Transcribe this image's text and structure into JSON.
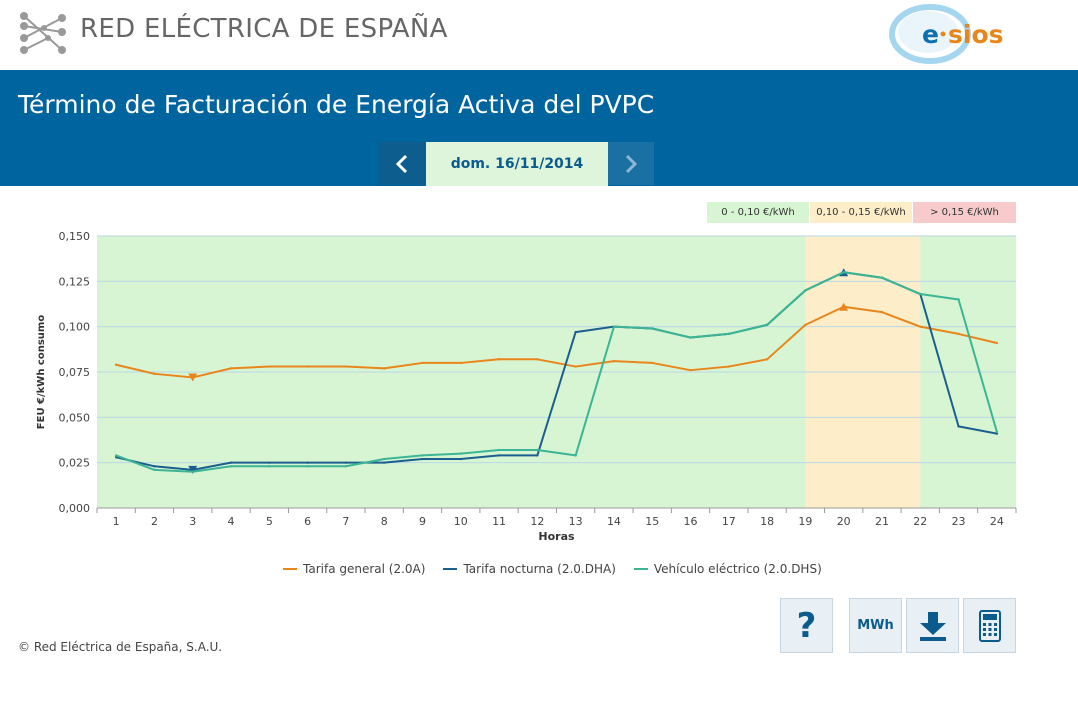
{
  "brand": {
    "company_name": "RED ELÉCTRICA DE ESPAÑA",
    "app_logo_text_prefix": "e",
    "app_logo_text_suffix": "sios"
  },
  "header": {
    "title": "Término de Facturación de Energía Activa del PVPC",
    "date": "dom. 16/11/2014"
  },
  "price_bands": [
    {
      "label": "0 - 0,10 €/kWh",
      "color": "#d8f5d3"
    },
    {
      "label": "0,10 - 0,15 €/kWh",
      "color": "#fdeec9"
    },
    {
      "label": "> 0,15 €/kWh",
      "color": "#f7cbcb"
    }
  ],
  "chart_data": {
    "type": "line",
    "title": "",
    "xlabel": "Horas",
    "ylabel": "FEU €/kWh consumo",
    "ylim": [
      0,
      0.15
    ],
    "y_ticks": [
      "0,000",
      "0,025",
      "0,050",
      "0,075",
      "0,100",
      "0,125",
      "0,150"
    ],
    "y_tick_values": [
      0,
      0.025,
      0.05,
      0.075,
      0.1,
      0.125,
      0.15
    ],
    "x": [
      "1",
      "2",
      "3",
      "4",
      "5",
      "6",
      "7",
      "8",
      "9",
      "10",
      "11",
      "12",
      "13",
      "14",
      "15",
      "16",
      "17",
      "18",
      "19",
      "20",
      "21",
      "22",
      "23",
      "24"
    ],
    "grid": true,
    "legend": "bottom",
    "background_bands": [
      {
        "from_hour": 18.5,
        "to_hour": 21.5,
        "color": "#fdeec9"
      }
    ],
    "series": [
      {
        "name": "Tarifa general (2.0A)",
        "color": "#e8861b",
        "values": [
          0.079,
          0.074,
          0.072,
          0.077,
          0.078,
          0.078,
          0.078,
          0.077,
          0.08,
          0.08,
          0.082,
          0.082,
          0.078,
          0.081,
          0.08,
          0.076,
          0.078,
          0.082,
          0.101,
          0.111,
          0.108,
          0.1,
          0.096,
          0.091
        ],
        "min_marker_hour": 3,
        "max_marker_hour": 20
      },
      {
        "name": "Tarifa nocturna (2.0.DHA)",
        "color": "#1b5f8e",
        "values": [
          0.028,
          0.023,
          0.021,
          0.025,
          0.025,
          0.025,
          0.025,
          0.025,
          0.027,
          0.027,
          0.029,
          0.029,
          0.097,
          0.1,
          0.099,
          0.094,
          0.096,
          0.101,
          0.12,
          0.13,
          0.127,
          0.118,
          0.045,
          0.041
        ],
        "min_marker_hour": 3,
        "max_marker_hour": 20
      },
      {
        "name": "Vehículo eléctrico (2.0.DHS)",
        "color": "#3bb594",
        "values": [
          0.029,
          0.021,
          0.02,
          0.023,
          0.023,
          0.023,
          0.023,
          0.027,
          0.029,
          0.03,
          0.032,
          0.032,
          0.029,
          0.1,
          0.099,
          0.094,
          0.096,
          0.101,
          0.12,
          0.13,
          0.127,
          0.118,
          0.115,
          0.042
        ]
      }
    ]
  },
  "footer": {
    "copyright": "© Red Eléctrica de España, S.A.U.",
    "help_label": "?",
    "mwh_label": "MWh"
  }
}
